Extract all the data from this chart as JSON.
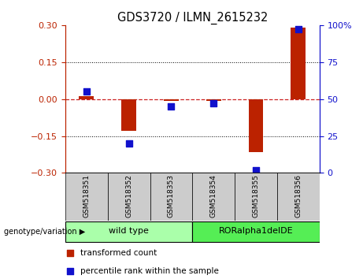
{
  "title": "GDS3720 / ILMN_2615232",
  "samples": [
    "GSM518351",
    "GSM518352",
    "GSM518353",
    "GSM518354",
    "GSM518355",
    "GSM518356"
  ],
  "transformed_count": [
    0.013,
    -0.13,
    -0.008,
    -0.008,
    -0.215,
    0.29
  ],
  "percentile_rank": [
    55,
    20,
    45,
    47,
    2,
    97
  ],
  "ylim_left": [
    -0.3,
    0.3
  ],
  "ylim_right": [
    0,
    100
  ],
  "yticks_left": [
    -0.3,
    -0.15,
    0.0,
    0.15,
    0.3
  ],
  "yticks_right": [
    0,
    25,
    50,
    75,
    100
  ],
  "bar_color": "#bb2200",
  "dot_color": "#1111cc",
  "zero_line_color": "#cc2222",
  "sample_box_color": "#cccccc",
  "groups": [
    {
      "label": "wild type",
      "samples": [
        0,
        1,
        2
      ],
      "color": "#aaffaa"
    },
    {
      "label": "RORalpha1delDE",
      "samples": [
        3,
        4,
        5
      ],
      "color": "#55ee55"
    }
  ],
  "group_label": "genotype/variation ▶",
  "legend_bar_label": "transformed count",
  "legend_dot_label": "percentile rank within the sample",
  "bar_width": 0.35,
  "dot_size": 40
}
